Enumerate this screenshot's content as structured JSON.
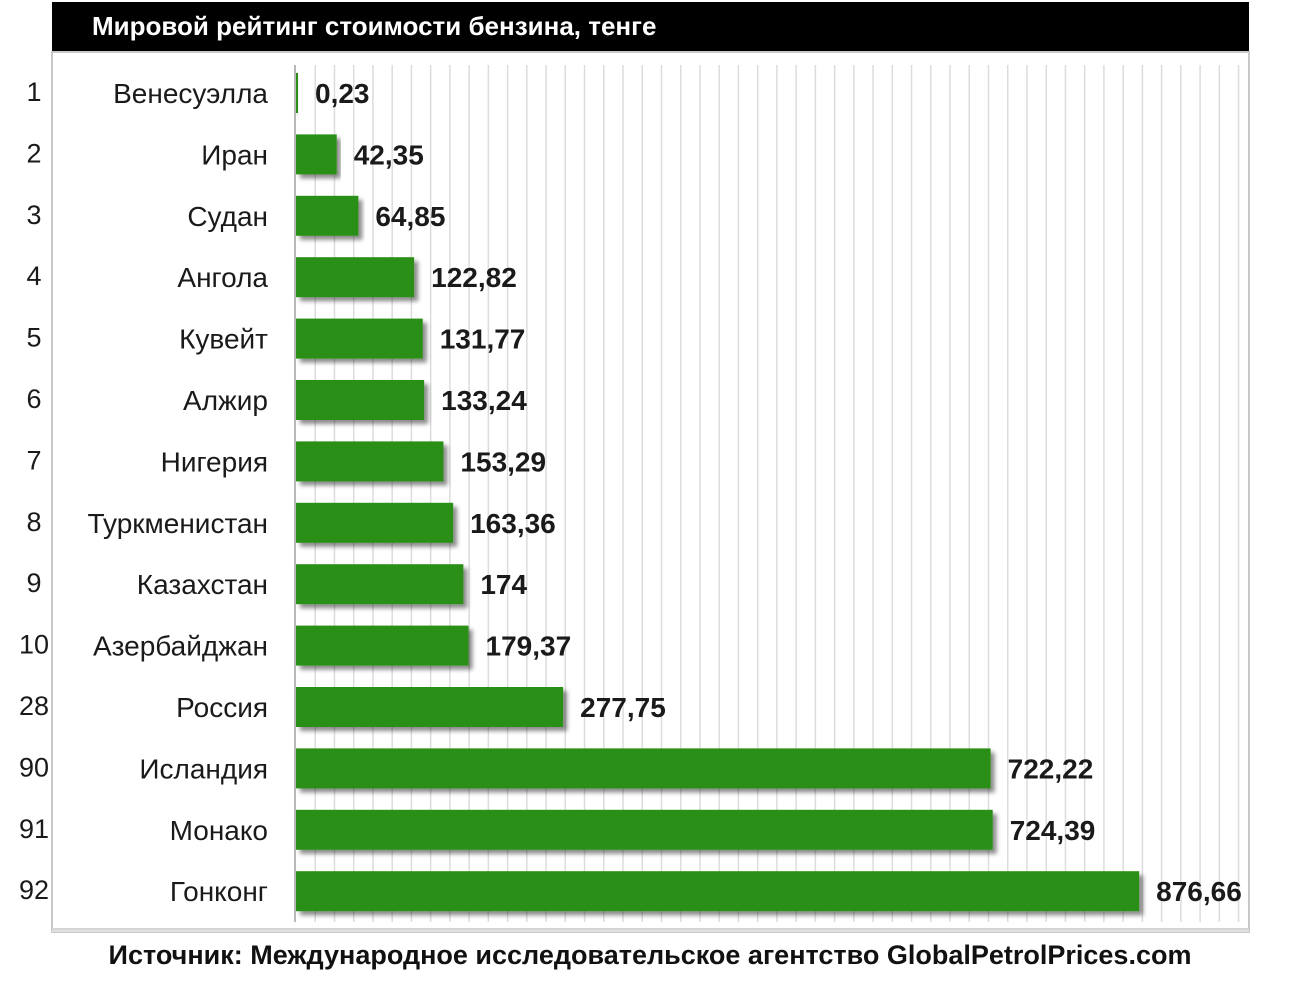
{
  "chart_data": {
    "type": "bar",
    "orientation": "horizontal",
    "title": "Мировой рейтинг стоимости бензина, тенге",
    "ranks": [
      "1",
      "2",
      "3",
      "4",
      "5",
      "6",
      "7",
      "8",
      "9",
      "10",
      "28",
      "90",
      "91",
      "92"
    ],
    "categories": [
      "Венесуэлла",
      "Иран",
      "Судан",
      "Ангола",
      "Кувейт",
      "Алжир",
      "Нигерия",
      "Туркменистан",
      "Казахстан",
      "Азербайджан",
      "Россия",
      "Исландия",
      "Монако",
      "Гонконг"
    ],
    "values": [
      0.23,
      42.35,
      64.85,
      122.82,
      131.77,
      133.24,
      153.29,
      163.36,
      174,
      179.37,
      277.75,
      722.22,
      724.39,
      876.66
    ],
    "value_labels": [
      "0,23",
      "42,35",
      "64,85",
      "122,82",
      "131,77",
      "133,24",
      "153,29",
      "163,36",
      "174",
      "179,37",
      "277,75",
      "722,22",
      "724,39",
      "876,66"
    ],
    "xlim": [
      0,
      1000
    ],
    "grid": true,
    "legend": "none",
    "bar_color": "#2b8f14",
    "source": "Источник: Международное исследовательское агентство GlobalPetrolPrices.com"
  }
}
